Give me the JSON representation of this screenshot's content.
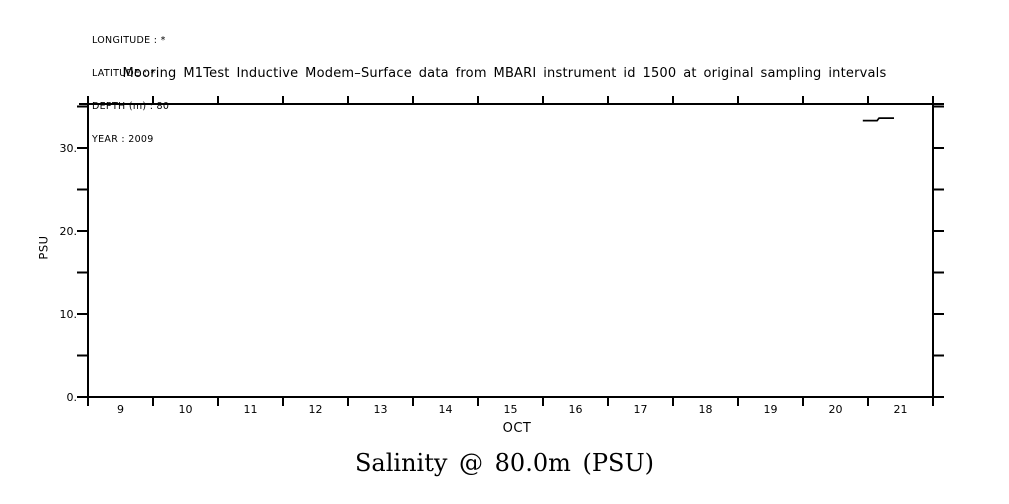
{
  "header": {
    "meta_lines": [
      "LONGITUDE : *",
      "LATITUDE : *",
      "DEPTH (m) : 80",
      "YEAR : 2009"
    ]
  },
  "caption": "Salinity @ 80.0m (PSU)",
  "chart_data": {
    "type": "line",
    "title": "Mooring M1Test Inductive Modem–Surface data from MBARI instrument id 1500 at original sampling intervals",
    "xlabel": "OCT",
    "ylabel": "PSU",
    "xlim": [
      9,
      22
    ],
    "ylim": [
      0,
      35.3
    ],
    "x_tick_days": [
      9,
      10,
      11,
      12,
      13,
      14,
      15,
      16,
      17,
      18,
      19,
      20,
      21,
      22
    ],
    "x_day_labels": [
      "9",
      "10",
      "11",
      "12",
      "13",
      "14",
      "15",
      "16",
      "17",
      "18",
      "19",
      "20",
      "21"
    ],
    "y_major_ticks": [
      0,
      10,
      20,
      30
    ],
    "y_major_labels": [
      "0.",
      "10.",
      "20.",
      "30."
    ],
    "y_minor_ticks": [
      5,
      15,
      25,
      35
    ],
    "grid": false,
    "legend": false,
    "background": "#ffffff",
    "axis_color": "#000000",
    "line_color": "#000000",
    "series": [
      {
        "name": "Salinity @ 80.0m (PSU)",
        "x": [
          20.92,
          21.14,
          21.17,
          21.4
        ],
        "y": [
          33.3,
          33.3,
          33.6,
          33.6
        ]
      }
    ]
  }
}
